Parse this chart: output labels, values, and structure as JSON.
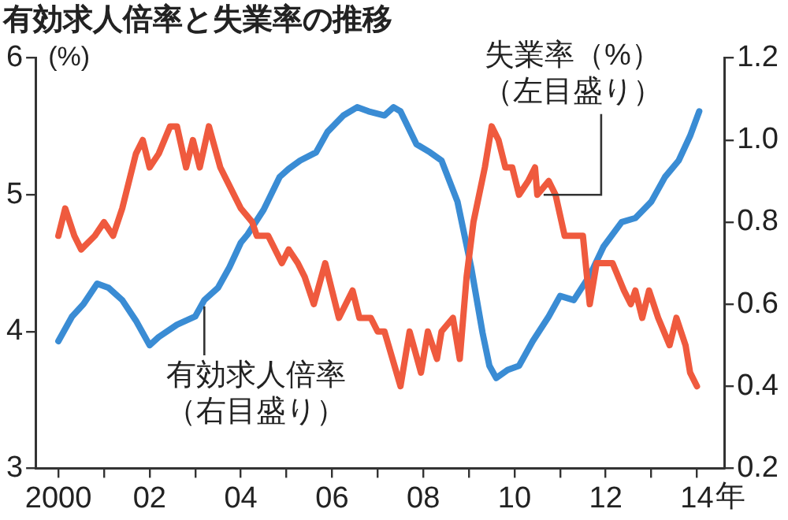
{
  "chart_data": {
    "type": "line",
    "title": "有効求人倍率と失業率の推移",
    "ylabel": "(%)",
    "xlim": [
      1999.5,
      2014.6
    ],
    "xticks": [
      {
        "value": 2000,
        "label": "2000"
      },
      {
        "value": 2001,
        "label": null
      },
      {
        "value": 2002,
        "label": "02"
      },
      {
        "value": 2003,
        "label": null
      },
      {
        "value": 2004,
        "label": "04"
      },
      {
        "value": 2005,
        "label": null
      },
      {
        "value": 2006,
        "label": "06"
      },
      {
        "value": 2007,
        "label": null
      },
      {
        "value": 2008,
        "label": "08"
      },
      {
        "value": 2009,
        "label": null
      },
      {
        "value": 2010,
        "label": "10"
      },
      {
        "value": 2011,
        "label": null
      },
      {
        "value": 2012,
        "label": "12"
      },
      {
        "value": 2013,
        "label": null
      },
      {
        "value": 2014,
        "label": "14"
      }
    ],
    "xlabel": "年",
    "ylim": [
      3,
      6
    ],
    "yticks": [
      3,
      4,
      5,
      6
    ],
    "y2lim": [
      0.2,
      1.2
    ],
    "y2ticks": [
      0.2,
      0.4,
      0.6,
      0.8,
      {
        "value": 1,
        "label": "1.0"
      },
      1.2
    ],
    "grid": false,
    "legend": false,
    "series": [
      {
        "name": "失業率（%）（左目盛り）",
        "color": "#ef5a3e",
        "x": [
          2000.0,
          2000.15,
          2000.35,
          2000.5,
          2000.8,
          2001.0,
          2001.2,
          2001.4,
          2001.7,
          2001.85,
          2002.0,
          2002.2,
          2002.45,
          2002.6,
          2002.8,
          2002.95,
          2003.1,
          2003.3,
          2003.55,
          2003.7,
          2004.0,
          2004.25,
          2004.35,
          2004.6,
          2004.9,
          2005.05,
          2005.25,
          2005.4,
          2005.6,
          2005.85,
          2006.0,
          2006.15,
          2006.45,
          2006.6,
          2006.85,
          2007.0,
          2007.15,
          2007.5,
          2007.7,
          2007.95,
          2008.1,
          2008.3,
          2008.4,
          2008.65,
          2008.8,
          2008.95,
          2009.1,
          2009.35,
          2009.5,
          2009.65,
          2009.8,
          2009.95,
          2010.1,
          2010.3,
          2010.45,
          2010.5,
          2010.75,
          2010.9,
          2011.1,
          2011.3,
          2011.5,
          2011.65,
          2011.8,
          2012.15,
          2012.4,
          2012.55,
          2012.65,
          2012.8,
          2012.95,
          2013.15,
          2013.4,
          2013.55,
          2013.75,
          2013.85,
          2014.0
        ],
        "values": [
          4.7,
          4.9,
          4.7,
          4.6,
          4.7,
          4.8,
          4.7,
          4.9,
          5.3,
          5.4,
          5.2,
          5.3,
          5.5,
          5.5,
          5.2,
          5.4,
          5.2,
          5.5,
          5.2,
          5.1,
          4.9,
          4.8,
          4.7,
          4.7,
          4.5,
          4.6,
          4.5,
          4.4,
          4.2,
          4.5,
          4.3,
          4.1,
          4.3,
          4.1,
          4.1,
          4.0,
          4.0,
          3.6,
          4.0,
          3.7,
          4.0,
          3.8,
          4.0,
          4.1,
          3.8,
          4.4,
          4.8,
          5.2,
          5.5,
          5.4,
          5.2,
          5.2,
          5.0,
          5.1,
          5.2,
          5.0,
          5.1,
          5.0,
          4.7,
          4.7,
          4.7,
          4.2,
          4.5,
          4.5,
          4.3,
          4.2,
          4.3,
          4.1,
          4.3,
          4.1,
          3.9,
          4.1,
          3.9,
          3.7,
          3.6
        ]
      },
      {
        "name": "有効求人倍率（右目盛り）",
        "color": "#3a8cd4",
        "axis": "y2",
        "x": [
          2000.0,
          2000.3,
          2000.55,
          2000.85,
          2001.1,
          2001.4,
          2001.7,
          2002.0,
          2002.2,
          2002.6,
          2003.0,
          2003.2,
          2003.5,
          2003.75,
          2004.0,
          2004.15,
          2004.5,
          2004.85,
          2005.05,
          2005.3,
          2005.65,
          2005.9,
          2006.25,
          2006.55,
          2006.8,
          2007.15,
          2007.35,
          2007.5,
          2007.85,
          2008.15,
          2008.4,
          2008.75,
          2009.05,
          2009.3,
          2009.45,
          2009.6,
          2009.85,
          2010.1,
          2010.4,
          2010.75,
          2011.0,
          2011.3,
          2011.65,
          2011.95,
          2012.35,
          2012.65,
          2013.0,
          2013.3,
          2013.6,
          2013.85,
          2014.05
        ],
        "values": [
          0.51,
          0.57,
          0.6,
          0.65,
          0.64,
          0.61,
          0.56,
          0.5,
          0.52,
          0.55,
          0.57,
          0.61,
          0.64,
          0.69,
          0.75,
          0.77,
          0.83,
          0.91,
          0.93,
          0.95,
          0.97,
          1.02,
          1.06,
          1.08,
          1.07,
          1.06,
          1.08,
          1.07,
          0.99,
          0.97,
          0.95,
          0.85,
          0.69,
          0.53,
          0.45,
          0.42,
          0.44,
          0.45,
          0.51,
          0.57,
          0.62,
          0.61,
          0.67,
          0.74,
          0.8,
          0.81,
          0.85,
          0.91,
          0.95,
          1.01,
          1.07
        ]
      }
    ]
  }
}
